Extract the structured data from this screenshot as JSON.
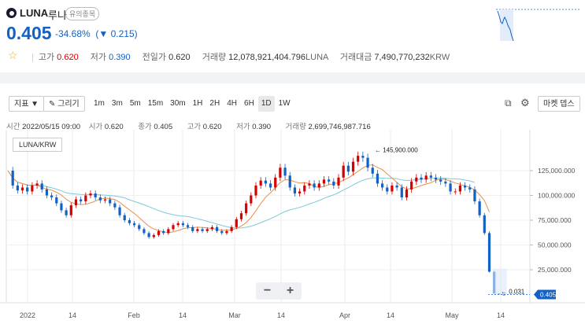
{
  "header": {
    "symbol": "LUNA",
    "korean_name": "루나",
    "badge": "유의종목",
    "price": "0.405",
    "change_pct": "-34.68%",
    "change_abs": "(▼ 0.215)",
    "stats": {
      "high_label": "고가",
      "high": "0.620",
      "low_label": "저가",
      "low": "0.390",
      "prev_label": "전일가",
      "prev": "0.620",
      "volume_label": "거래량",
      "volume": "12,078,921,404.796",
      "volume_unit": "LUNA",
      "amount_label": "거래대금",
      "amount": "7,490,770,232",
      "amount_unit": "KRW"
    }
  },
  "toolbar": {
    "indicator": "지표 ▼",
    "draw": "✎ 그리기",
    "timeframes": [
      "1m",
      "3m",
      "5m",
      "15m",
      "30m",
      "1H",
      "2H",
      "4H",
      "6H",
      "1D",
      "1W"
    ],
    "selected_timeframe": "1D",
    "market_depth": "마켓 뎁스"
  },
  "ohlc_info": {
    "time_label": "시간",
    "time": "2022/05/15 09:00",
    "open_label": "시가",
    "open": "0.620",
    "close_label": "종가",
    "close": "0.405",
    "high_label": "고가",
    "high": "0.620",
    "low_label": "저가",
    "low": "0.390",
    "vol_label": "거래량",
    "vol": "2,699,746,987.716"
  },
  "chart": {
    "legend": "LUNA/KRW",
    "max_annotation": "145,900.000",
    "min_annotation": "0.031",
    "last_price_tag": "0.405",
    "y_ticks": [
      "125,000.000",
      "100,000.000",
      "75,000.000",
      "50,000.000",
      "25,000.000"
    ],
    "x_ticks": [
      "2022",
      "14",
      "Feb",
      "14",
      "Mar",
      "14",
      "Apr",
      "14",
      "May",
      "14"
    ]
  },
  "colors": {
    "up": "#d60000",
    "down": "#1261c4",
    "ma_short": "#e8904a",
    "ma_long": "#7ec8d8"
  },
  "chart_data": {
    "type": "candlestick",
    "title": "",
    "xlabel": "",
    "ylabel": "",
    "ylim": [
      0,
      150000
    ],
    "series": [
      {
        "name": "LUNA/KRW",
        "x_start": "2021-12-28",
        "values": [
          125000,
          110000,
          105000,
          108000,
          104000,
          110000,
          112000,
          106000,
          100000,
          98000,
          92000,
          85000,
          80000,
          90000,
          96000,
          94000,
          100000,
          102000,
          98000,
          95000,
          96000,
          92000,
          88000,
          80000,
          75000,
          72000,
          70000,
          66000,
          62000,
          58000,
          60000,
          64000,
          62000,
          66000,
          70000,
          72000,
          70000,
          68000,
          64000,
          66000,
          64000,
          66000,
          68000,
          64000,
          62000,
          64000,
          68000,
          76000,
          82000,
          92000,
          100000,
          110000,
          115000,
          112000,
          108000,
          118000,
          128000,
          120000,
          108000,
          102000,
          104000,
          110000,
          112000,
          108000,
          112000,
          116000,
          114000,
          110000,
          118000,
          130000,
          124000,
          134000,
          140000,
          138000,
          128000,
          122000,
          112000,
          108000,
          104000,
          110000,
          108000,
          98000,
          106000,
          114000,
          118000,
          116000,
          120000,
          118000,
          116000,
          114000,
          112000,
          104000,
          104000,
          110000,
          108000,
          106000,
          94000,
          80000,
          62000,
          23000,
          1000,
          0.6,
          0.405
        ]
      }
    ]
  }
}
